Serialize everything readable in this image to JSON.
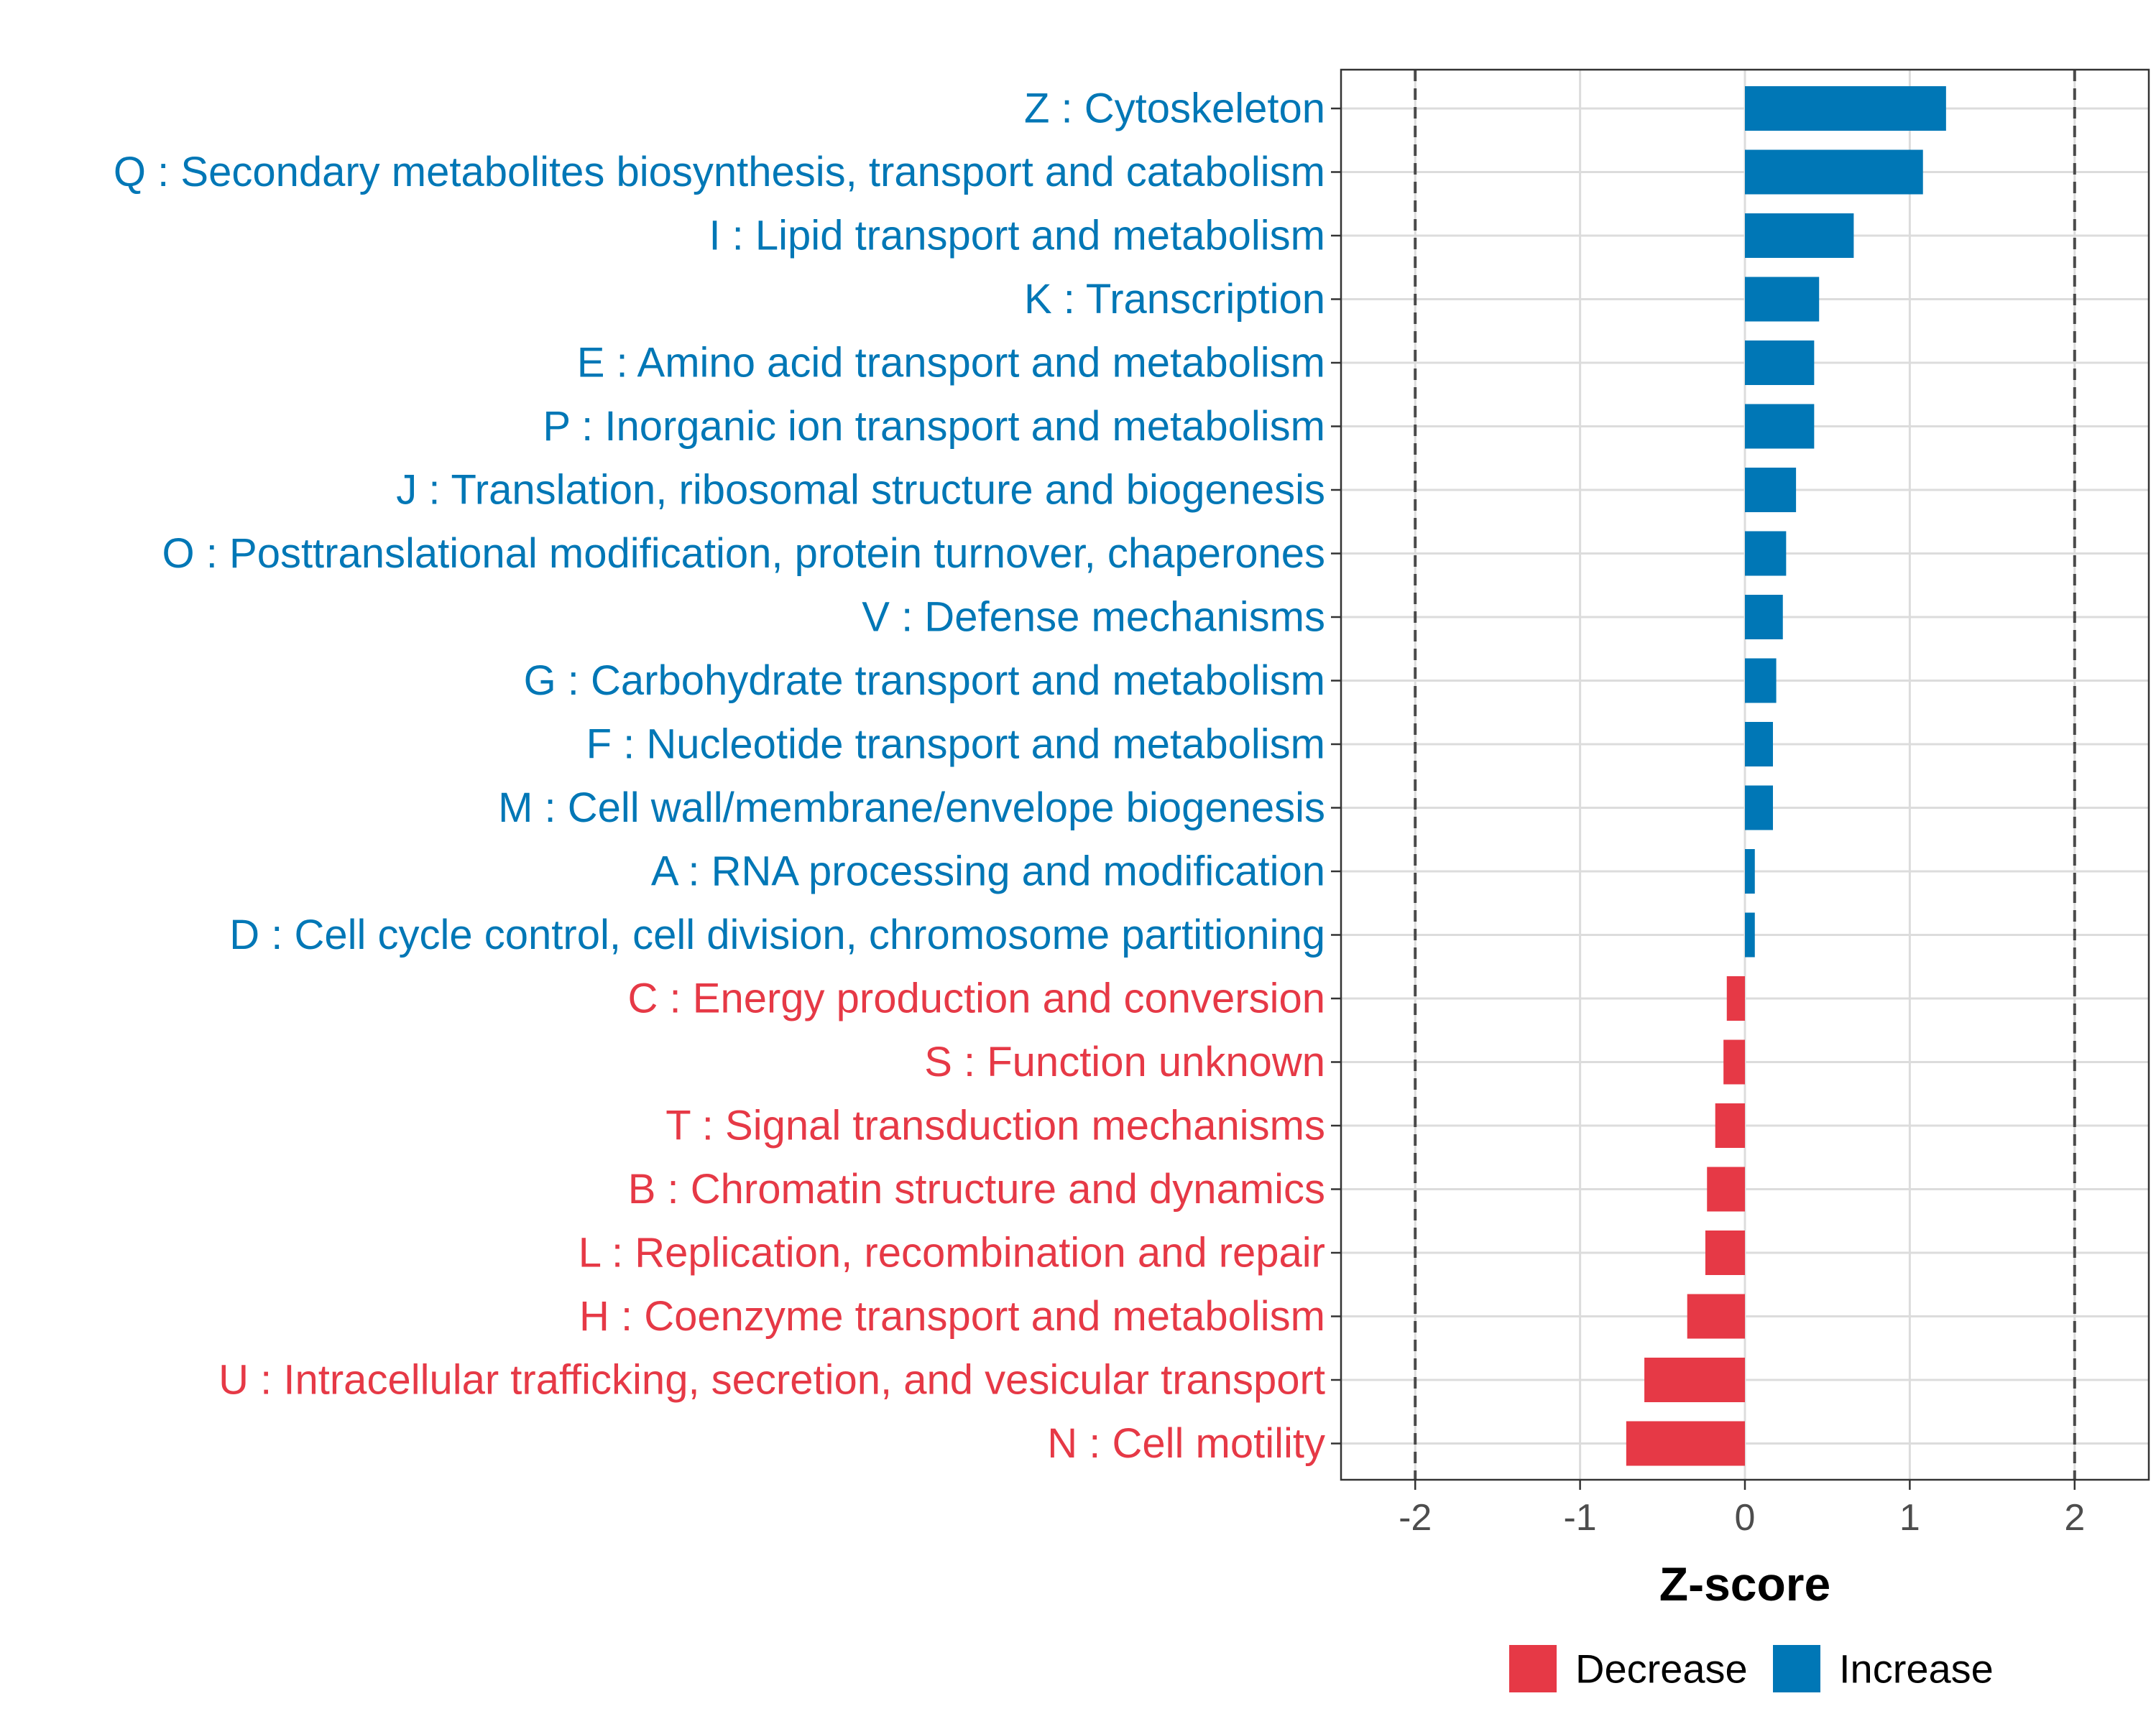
{
  "chart_data": {
    "type": "bar",
    "orientation": "horizontal",
    "xlabel": "Z-score",
    "xlim": [
      -2.45,
      2.45
    ],
    "xticks": [
      -2,
      -1,
      0,
      1,
      2
    ],
    "xtick_labels": [
      "-2",
      "-1",
      "0",
      "1",
      "2"
    ],
    "reference_lines": [
      -2,
      2
    ],
    "grid": true,
    "legend_position": "bottom",
    "colors": {
      "Decrease": "#e63946",
      "Increase": "#0077b6"
    },
    "legend": [
      {
        "label": "Decrease",
        "color": "#e63946"
      },
      {
        "label": "Increase",
        "color": "#0077b6"
      }
    ],
    "categories": [
      "Z : Cytoskeleton",
      "Q : Secondary metabolites biosynthesis, transport and catabolism",
      "I : Lipid transport and metabolism",
      "K : Transcription",
      "E : Amino acid transport and metabolism",
      "P : Inorganic ion transport and metabolism",
      "J : Translation, ribosomal structure and biogenesis",
      "O : Posttranslational modification, protein turnover, chaperones",
      "V : Defense mechanisms",
      "G : Carbohydrate transport and metabolism",
      "F : Nucleotide transport and metabolism",
      "M : Cell wall/membrane/envelope biogenesis",
      "A : RNA processing and modification",
      "D : Cell cycle control, cell division, chromosome partitioning",
      "C : Energy production and conversion",
      "S : Function unknown",
      "T : Signal transduction mechanisms",
      "B : Chromatin structure and dynamics",
      "L : Replication, recombination and repair",
      "H : Coenzyme transport and metabolism",
      "U : Intracellular trafficking, secretion, and vesicular transport",
      "N : Cell motility"
    ],
    "values": [
      1.22,
      1.08,
      0.66,
      0.45,
      0.42,
      0.42,
      0.31,
      0.25,
      0.23,
      0.19,
      0.17,
      0.17,
      0.06,
      0.06,
      -0.11,
      -0.13,
      -0.18,
      -0.23,
      -0.24,
      -0.35,
      -0.61,
      -0.72
    ],
    "groups": [
      "Increase",
      "Increase",
      "Increase",
      "Increase",
      "Increase",
      "Increase",
      "Increase",
      "Increase",
      "Increase",
      "Increase",
      "Increase",
      "Increase",
      "Increase",
      "Increase",
      "Decrease",
      "Decrease",
      "Decrease",
      "Decrease",
      "Decrease",
      "Decrease",
      "Decrease",
      "Decrease"
    ]
  }
}
